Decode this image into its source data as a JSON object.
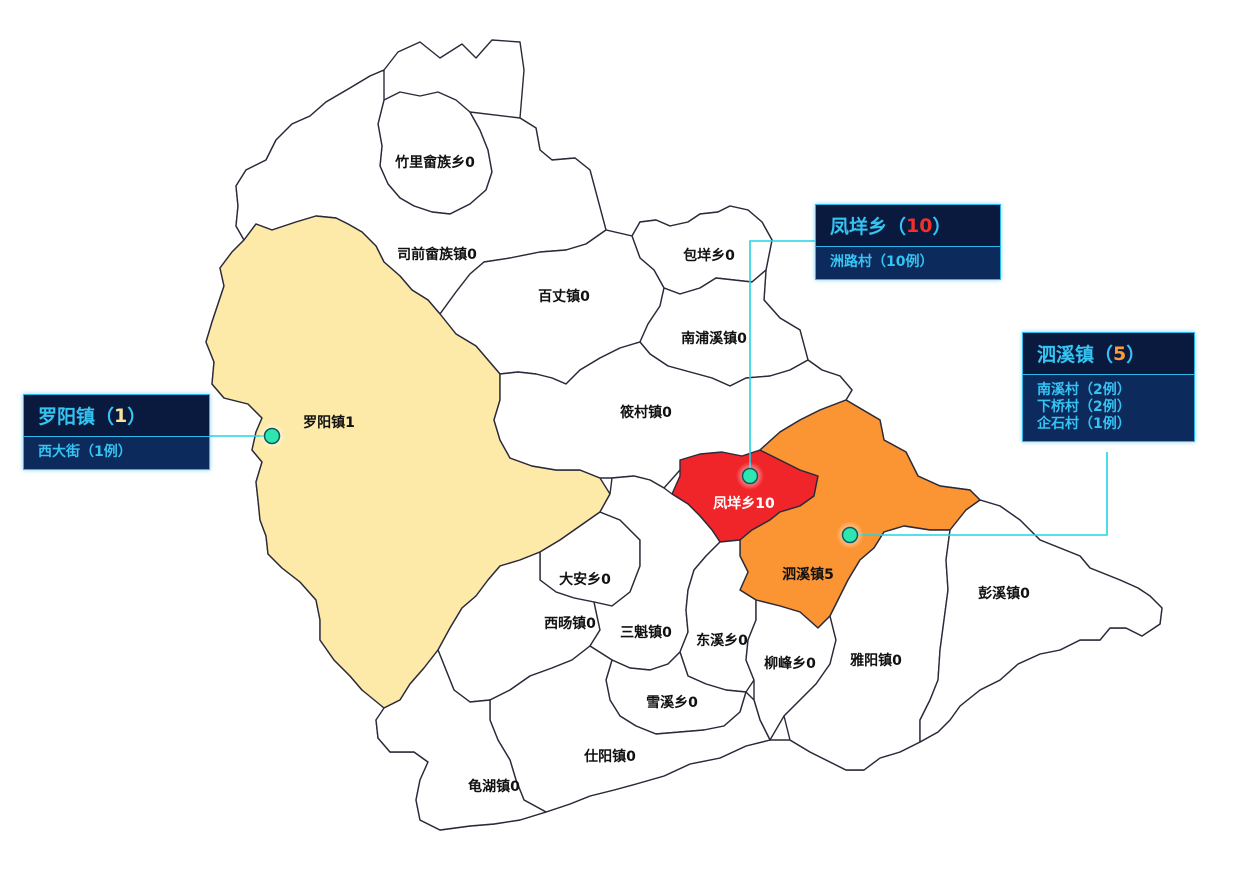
{
  "regions": [
    {
      "name": "竹里畲族乡",
      "count": 0,
      "label": "竹里畲族乡0",
      "fill": "#ffffff"
    },
    {
      "name": "司前畲族镇",
      "count": 0,
      "label": "司前畲族镇0",
      "fill": "#ffffff"
    },
    {
      "name": "包垟乡",
      "count": 0,
      "label": "包垟乡0",
      "fill": "#ffffff"
    },
    {
      "name": "百丈镇",
      "count": 0,
      "label": "百丈镇0",
      "fill": "#ffffff"
    },
    {
      "name": "南浦溪镇",
      "count": 0,
      "label": "南浦溪镇0",
      "fill": "#ffffff"
    },
    {
      "name": "罗阳镇",
      "count": 1,
      "label": "罗阳镇1",
      "fill": "#fdeaa8"
    },
    {
      "name": "筱村镇",
      "count": 0,
      "label": "筱村镇0",
      "fill": "#ffffff"
    },
    {
      "name": "凤垟乡",
      "count": 10,
      "label": "凤垟乡10",
      "fill": "#f0252a"
    },
    {
      "name": "泗溪镇",
      "count": 5,
      "label": "泗溪镇5",
      "fill": "#fb9433"
    },
    {
      "name": "大安乡",
      "count": 0,
      "label": "大安乡0",
      "fill": "#ffffff"
    },
    {
      "name": "西旸镇",
      "count": 0,
      "label": "西旸镇0",
      "fill": "#ffffff"
    },
    {
      "name": "三魁镇",
      "count": 0,
      "label": "三魁镇0",
      "fill": "#ffffff"
    },
    {
      "name": "东溪乡",
      "count": 0,
      "label": "东溪乡0",
      "fill": "#ffffff"
    },
    {
      "name": "柳峰乡",
      "count": 0,
      "label": "柳峰乡0",
      "fill": "#ffffff"
    },
    {
      "name": "雅阳镇",
      "count": 0,
      "label": "雅阳镇0",
      "fill": "#ffffff"
    },
    {
      "name": "彭溪镇",
      "count": 0,
      "label": "彭溪镇0",
      "fill": "#ffffff"
    },
    {
      "name": "雪溪乡",
      "count": 0,
      "label": "雪溪乡0",
      "fill": "#ffffff"
    },
    {
      "name": "仕阳镇",
      "count": 0,
      "label": "仕阳镇0",
      "fill": "#ffffff"
    },
    {
      "name": "龟湖镇",
      "count": 0,
      "label": "龟湖镇0",
      "fill": "#ffffff"
    }
  ],
  "callouts": {
    "luoyang": {
      "title": "罗阳镇",
      "open": "（",
      "count": "1",
      "close": "）",
      "count_color": "#f7e49a",
      "items": [
        "西大街（1例）"
      ]
    },
    "fengyang": {
      "title": "凤垟乡",
      "open": "（",
      "count": "10",
      "close": "）",
      "count_color": "#f0302a",
      "items": [
        "洲路村（10例）"
      ]
    },
    "sixi": {
      "title": "泗溪镇",
      "open": "（",
      "count": "5",
      "close": "）",
      "count_color": "#fb9a3a",
      "items": [
        "南溪村（2例）",
        "下桥村（2例）",
        "企石村（1例）"
      ]
    }
  },
  "colors": {
    "case_high": "#f0252a",
    "case_mid": "#fb9433",
    "case_low": "#fdeaa8",
    "no_case": "#ffffff",
    "marker": "#2ee6b0",
    "leader": "#22d3e6",
    "callout_bg": "#0b1f4b"
  }
}
